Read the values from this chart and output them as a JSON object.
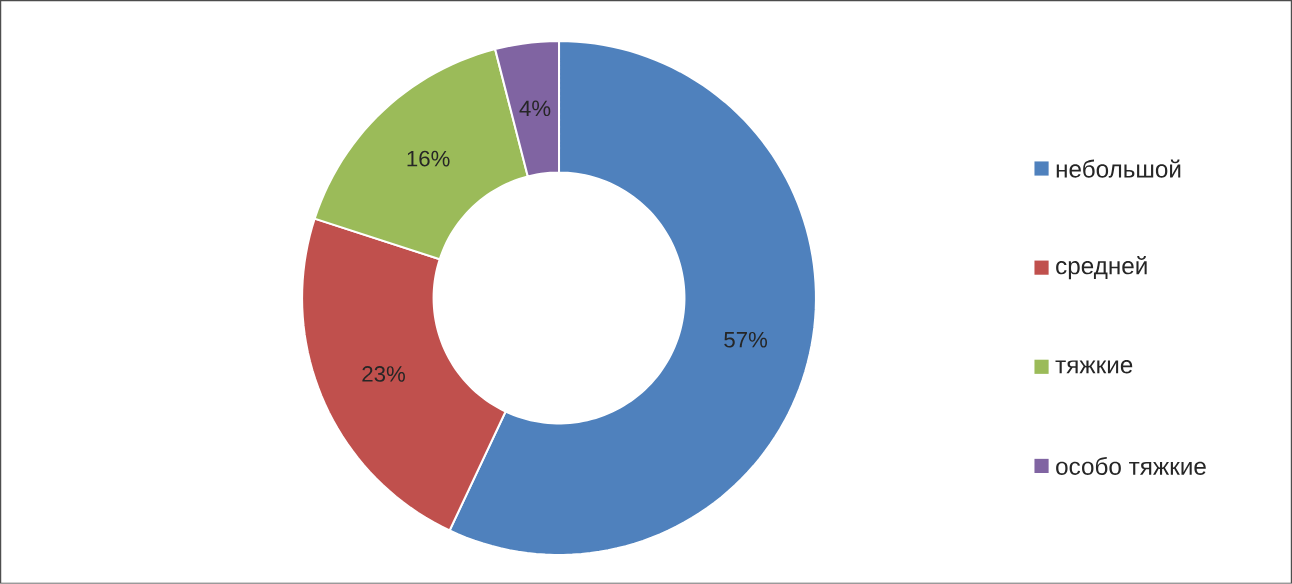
{
  "chart_data": {
    "type": "donut",
    "categories": [
      "небольшой",
      "средней",
      "тяжкие",
      "особо тяжкие"
    ],
    "values": [
      57,
      23,
      16,
      4
    ],
    "colors": [
      "#4f81bd",
      "#c0504d",
      "#9bbb59",
      "#8064a2"
    ],
    "value_labels": [
      "57%",
      "23%",
      "16%",
      "4%"
    ],
    "legend": "right"
  }
}
